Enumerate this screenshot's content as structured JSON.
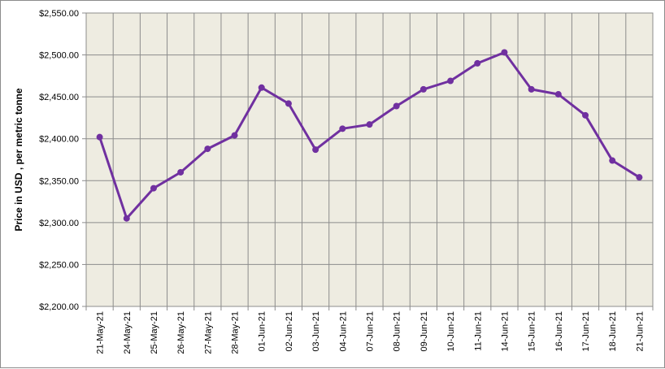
{
  "chart_data": {
    "type": "line",
    "title": "",
    "xlabel": "",
    "ylabel": "Price in USD , per metric tonne",
    "ylim": [
      2200,
      2550
    ],
    "y_tick_labels": [
      "$2,200.00",
      "$2,250.00",
      "$2,300.00",
      "$2,350.00",
      "$2,400.00",
      "$2,450.00",
      "$2,500.00",
      "$2,550.00"
    ],
    "grid": true,
    "legend": "none",
    "colors": {
      "line": "#7030a0",
      "plot_bg": "#eeece1",
      "grid": "#8c8c8c"
    },
    "categories": [
      "21-May-21",
      "24-May-21",
      "25-May-21",
      "26-May-21",
      "27-May-21",
      "28-May-21",
      "01-Jun-21",
      "02-Jun-21",
      "03-Jun-21",
      "04-Jun-21",
      "07-Jun-21",
      "08-Jun-21",
      "09-Jun-21",
      "10-Jun-21",
      "11-Jun-21",
      "14-Jun-21",
      "15-Jun-21",
      "16-Jun-21",
      "17-Jun-21",
      "18-Jun-21",
      "21-Jun-21"
    ],
    "series": [
      {
        "values": [
          2402,
          2305,
          2341,
          2360,
          2388,
          2404,
          2461,
          2442,
          2387,
          2412,
          2417,
          2439,
          2459,
          2469,
          2490,
          2503,
          2459,
          2453,
          2428,
          2374,
          2354
        ]
      }
    ]
  }
}
